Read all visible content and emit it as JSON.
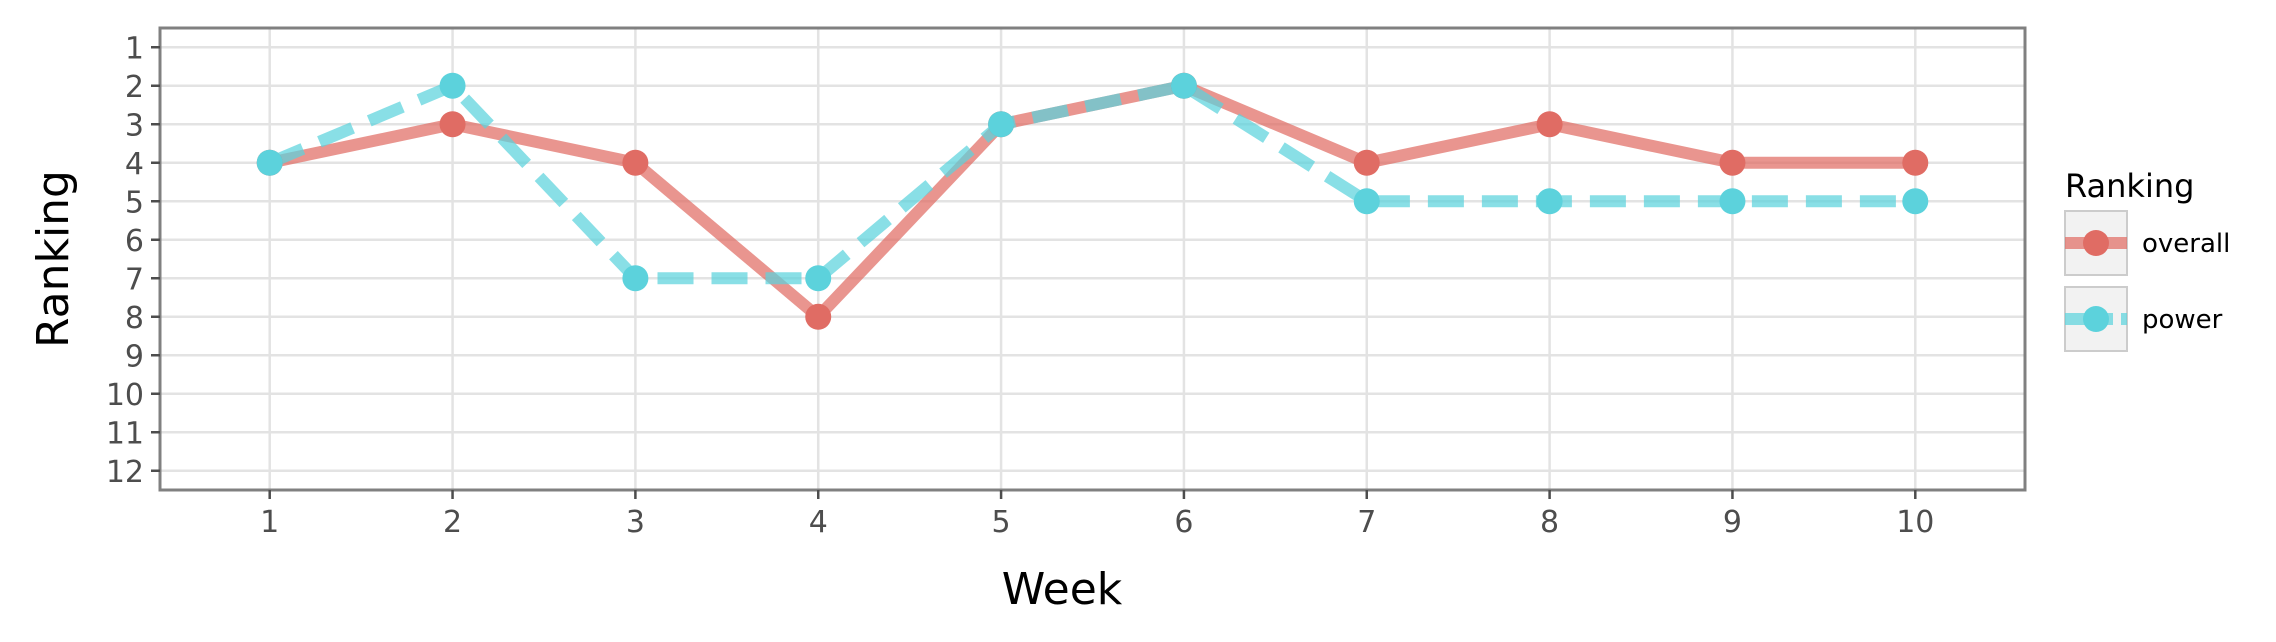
{
  "chart_data": {
    "type": "line",
    "xlabel": "Week",
    "ylabel": "Ranking",
    "x": [
      1,
      2,
      3,
      4,
      5,
      6,
      7,
      8,
      9,
      10
    ],
    "x_ticks": [
      "1",
      "2",
      "3",
      "4",
      "5",
      "6",
      "7",
      "8",
      "9",
      "10"
    ],
    "y_ticks": [
      "1",
      "2",
      "3",
      "4",
      "5",
      "6",
      "7",
      "8",
      "9",
      "10",
      "11",
      "12"
    ],
    "xlim": [
      0.4,
      10.6
    ],
    "ylim": [
      12.5,
      0.5
    ],
    "y_reversed": true,
    "grid": true,
    "legend": {
      "title": "Ranking",
      "placement": "right"
    },
    "series": [
      {
        "name": "overall",
        "values": [
          4,
          3,
          4,
          8,
          3,
          2,
          4,
          3,
          4,
          4
        ],
        "color": "#e06c64",
        "line_style": "solid"
      },
      {
        "name": "power",
        "values": [
          4,
          2,
          7,
          7,
          3,
          2,
          5,
          5,
          5,
          5
        ],
        "color": "#5cd2dc",
        "line_style": "dashed"
      }
    ]
  }
}
